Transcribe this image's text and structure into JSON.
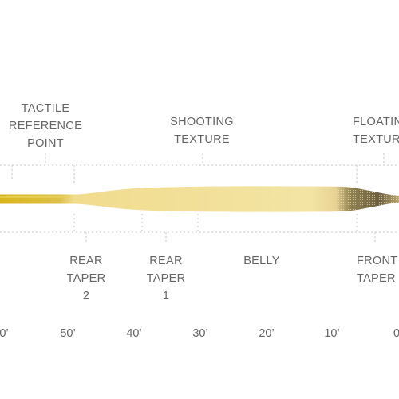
{
  "top_labels": [
    {
      "id": "tactile-reference-point",
      "lines": [
        "TACTILE",
        "REFERENCE",
        "POINT"
      ]
    },
    {
      "id": "shooting-texture",
      "lines": [
        "SHOOTING",
        "TEXTURE"
      ]
    },
    {
      "id": "floating-texture",
      "lines": [
        "FLOATIN",
        "TEXTUR"
      ]
    }
  ],
  "bottom_labels": [
    {
      "id": "rear-taper-2",
      "lines": [
        "REAR",
        "TAPER",
        "2"
      ]
    },
    {
      "id": "rear-taper-1",
      "lines": [
        "REAR",
        "TAPER",
        "1"
      ]
    },
    {
      "id": "belly",
      "lines": [
        "BELLY"
      ]
    },
    {
      "id": "front-taper",
      "lines": [
        "FRONT",
        "TAPER"
      ]
    }
  ],
  "axis_ticks": [
    "0’",
    "50’",
    "40’",
    "30’",
    "20’",
    "10’",
    "0"
  ],
  "colors": {
    "line_running": "#d9b91e",
    "line_taper": "#f0dc8a",
    "tip_texture": "#5a4e2e",
    "guide": "#bdbdbd",
    "text": "#666666"
  }
}
